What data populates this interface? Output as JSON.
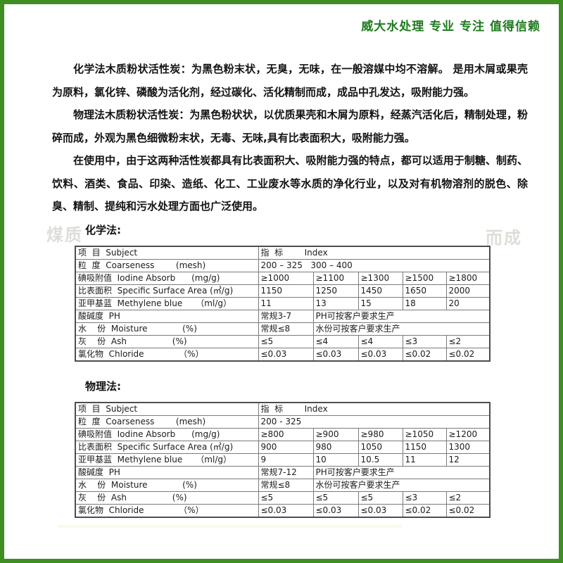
{
  "page": {
    "border_color": "#3e8e22",
    "background": "#ffffff"
  },
  "header": {
    "title": "威大水处理 专业 专注 值得信赖",
    "color": "#1e7b1e"
  },
  "paragraphs": [
    "化学法木质粉状活性炭：为黑色粉末状，无臭，无味，在一般溶媒中均不溶解。 是用木屑或果壳为原料，氯化锌、磷酸为活化剂，经过碳化、活化精制而成，成品中孔发达，吸附能力强。",
    "物理法木质粉状活性炭：为黑色粉状状，以优质果壳和木屑为原料，经蒸汽活化后，精制处理，粉碎而成，外观为黑色细微粉末状，无毒、无味,具有比表面积大，吸附能力强。",
    "在使用中，由于这两种活性炭都具有比表面积大、吸附能力强的特点，都可以适用于制糖、制药、饮料、酒类、食品、印染、造纸、化工、工业废水等水质的净化行业，以及对有机物溶剂的脱色、除臭、精制、提纯和污水处理方面也广泛使用。"
  ],
  "watermarks": [
    "煤质",
    "而成"
  ],
  "tables": [
    {
      "label": "化学法:",
      "rows": [
        [
          {
            "text": "项  目  Subject"
          },
          {
            "text": "指  标        Index",
            "span": 5
          }
        ],
        [
          {
            "text": "粒  度  Coarseness        (mesh)"
          },
          {
            "text": "200 – 325   300 – 400",
            "span": 5
          }
        ],
        [
          {
            "text": "碘吸附值  Iodine Absorb      (mg/g)"
          },
          {
            "text": "≥1000"
          },
          {
            "text": "≥1100"
          },
          {
            "text": "≥1300"
          },
          {
            "text": "≥1500"
          },
          {
            "text": "≥1800"
          }
        ],
        [
          {
            "text": "比表面积  Specific Surface Area (㎡/g)"
          },
          {
            "text": "1150"
          },
          {
            "text": "1250"
          },
          {
            "text": "1450"
          },
          {
            "text": "1650"
          },
          {
            "text": "2000"
          }
        ],
        [
          {
            "text": "亚甲基蓝  Methylene blue     （ml/g）"
          },
          {
            "text": "11"
          },
          {
            "text": "13"
          },
          {
            "text": "15"
          },
          {
            "text": "18"
          },
          {
            "text": "20"
          }
        ],
        [
          {
            "text": "酸碱度  PH"
          },
          {
            "text": "常规3-7"
          },
          {
            "text": "PH可按客户要求生产",
            "span": 4
          }
        ],
        [
          {
            "text": "水    份  Moisture             (%)"
          },
          {
            "text": "常规≤8"
          },
          {
            "text": "水份可按客户要求生产",
            "span": 4
          }
        ],
        [
          {
            "text": "灰    份  Ash                 (%)"
          },
          {
            "text": "≤5"
          },
          {
            "text": "≤4"
          },
          {
            "text": "≤4"
          },
          {
            "text": "≤3"
          },
          {
            "text": "≤2"
          }
        ],
        [
          {
            "text": "氯化物  Chloride             （%）"
          },
          {
            "text": "≤0.03"
          },
          {
            "text": "≤0.03"
          },
          {
            "text": "≤0.03"
          },
          {
            "text": "≤0.02"
          },
          {
            "text": "≤0.02"
          }
        ]
      ]
    },
    {
      "label": "物理法:",
      "rows": [
        [
          {
            "text": "项  目  Subject"
          },
          {
            "text": "指  标        Index",
            "span": 5
          }
        ],
        [
          {
            "text": "粒  度  Coarseness        (mesh)"
          },
          {
            "text": "200 - 325",
            "span": 5
          }
        ],
        [
          {
            "text": "碘吸附值  Iodine Absorb      (mg/g)"
          },
          {
            "text": "≥800"
          },
          {
            "text": "≥900"
          },
          {
            "text": "≥980"
          },
          {
            "text": "≥1050"
          },
          {
            "text": "≥1200"
          }
        ],
        [
          {
            "text": "比表面积  Specific Surface Area (㎡/g)"
          },
          {
            "text": "900"
          },
          {
            "text": "980"
          },
          {
            "text": "1050"
          },
          {
            "text": "1150"
          },
          {
            "text": "1300"
          }
        ],
        [
          {
            "text": "亚甲基蓝  Methylene blue     （ml/g）"
          },
          {
            "text": "9"
          },
          {
            "text": "10"
          },
          {
            "text": "10.5"
          },
          {
            "text": "11"
          },
          {
            "text": "12"
          }
        ],
        [
          {
            "text": "酸碱度  PH"
          },
          {
            "text": "常规7-12"
          },
          {
            "text": "PH可按客户要求生产",
            "span": 4
          }
        ],
        [
          {
            "text": "水    份  Moisture             (%)"
          },
          {
            "text": "常规≤8"
          },
          {
            "text": "水份可按客户要求生产",
            "span": 4
          }
        ],
        [
          {
            "text": "灰    份  Ash                 (%)"
          },
          {
            "text": "≤5"
          },
          {
            "text": "≤5"
          },
          {
            "text": "≤5"
          },
          {
            "text": "≤3"
          },
          {
            "text": "≤2"
          }
        ],
        [
          {
            "text": "氯化物  Chloride             （%）"
          },
          {
            "text": "≤0.03"
          },
          {
            "text": "≤0.03"
          },
          {
            "text": "≤0.03"
          },
          {
            "text": "≤0.02"
          },
          {
            "text": "≤0.02"
          }
        ]
      ]
    }
  ]
}
